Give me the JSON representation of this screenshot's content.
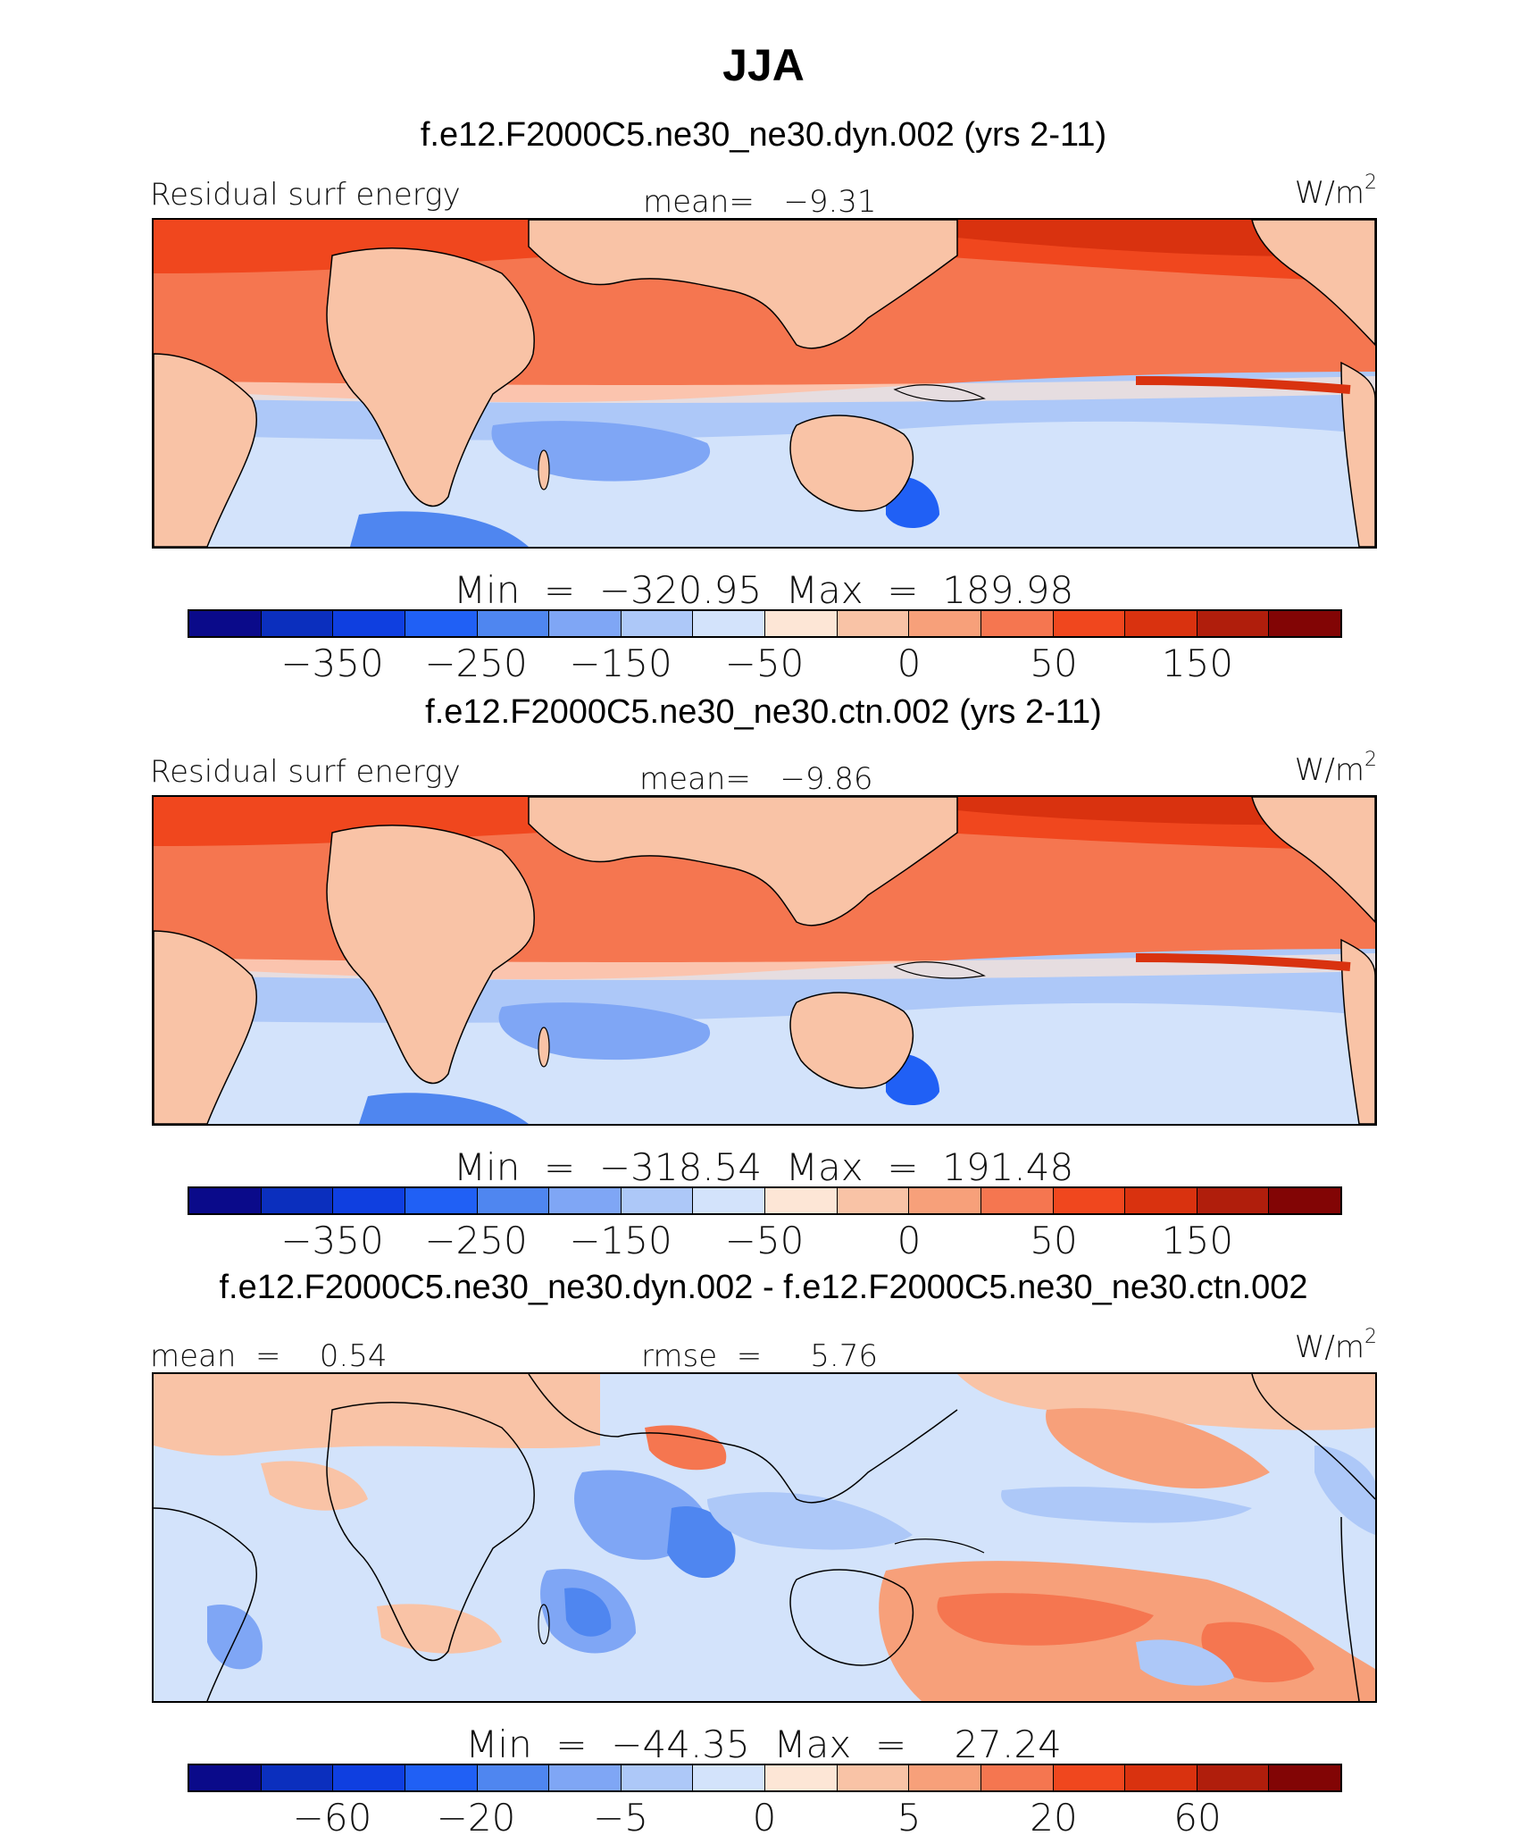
{
  "title": "JJA",
  "palette": [
    "#0a0a8a",
    "#0b2fbe",
    "#0f3fe0",
    "#2060f5",
    "#4f86f0",
    "#7fa6f5",
    "#adc8f8",
    "#d3e3fb",
    "#fde6d6",
    "#f9c3a6",
    "#f7a07a",
    "#f57650",
    "#f0471e",
    "#d9320f",
    "#b01e0c",
    "#820505"
  ],
  "panels": [
    {
      "title": "f.e12.F2000C5.ne30_ne30.dyn.002 (yrs 2-11)",
      "left_label": "Residual surf energy",
      "center_label": "mean=   −9.31",
      "units": "W/m",
      "units_exp": "2",
      "minmax": "Min  =  −320.95  Max  =  189.98",
      "ticks": [
        "−350",
        "−250",
        "−150",
        "−50",
        "0",
        "50",
        "150"
      ]
    },
    {
      "title": "f.e12.F2000C5.ne30_ne30.ctn.002 (yrs 2-11)",
      "left_label": "Residual surf energy",
      "center_label": "mean=   −9.86",
      "units": "W/m",
      "units_exp": "2",
      "minmax": "Min  =  −318.54  Max  =  191.48",
      "ticks": [
        "−350",
        "−250",
        "−150",
        "−50",
        "0",
        "50",
        "150"
      ]
    },
    {
      "title": "f.e12.F2000C5.ne30_ne30.dyn.002 - f.e12.F2000C5.ne30_ne30.ctn.002",
      "left_label": "mean  =    0.54",
      "center_label": "rmse  =     5.76",
      "units": "W/m",
      "units_exp": "2",
      "minmax": "Min  =  −44.35  Max  =    27.24",
      "ticks": [
        "−60",
        "−20",
        "−5",
        "0",
        "5",
        "20",
        "60"
      ]
    }
  ]
}
